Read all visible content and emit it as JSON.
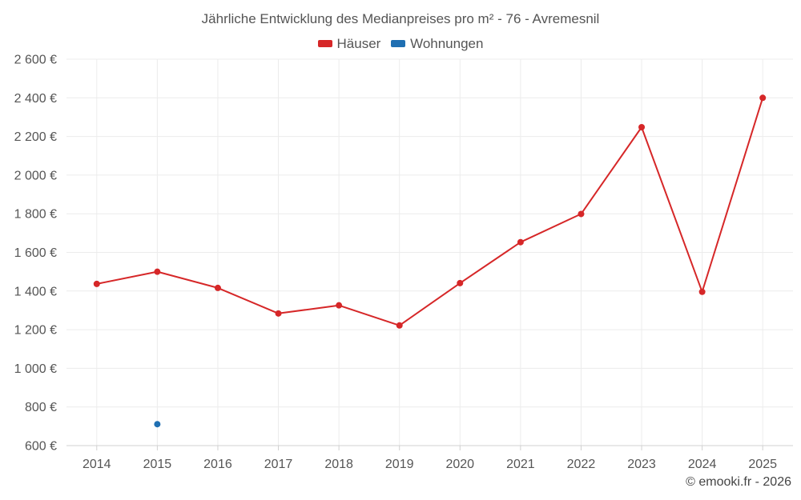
{
  "chart_data": {
    "type": "line",
    "title": "Jährliche Entwicklung des Medianpreises pro m² - 76 - Avremesnil",
    "categories": [
      "2014",
      "2015",
      "2016",
      "2017",
      "2018",
      "2019",
      "2020",
      "2021",
      "2022",
      "2023",
      "2024",
      "2025"
    ],
    "series": [
      {
        "name": "Häuser",
        "color": "#d62728",
        "values": [
          1437,
          1500,
          1416,
          1284,
          1326,
          1222,
          1441,
          1653,
          1799,
          2248,
          1396,
          2400
        ]
      },
      {
        "name": "Wohnungen",
        "color": "#1f6fb2",
        "values": [
          null,
          711,
          null,
          null,
          null,
          null,
          null,
          null,
          null,
          null,
          null,
          null
        ]
      }
    ],
    "y_ticks": [
      600,
      800,
      1000,
      1200,
      1400,
      1600,
      1800,
      2000,
      2200,
      2400,
      2600
    ],
    "y_tick_labels": [
      "600 €",
      "800 €",
      "1 000 €",
      "1 200 €",
      "1 400 €",
      "1 600 €",
      "1 800 €",
      "2 000 €",
      "2 200 €",
      "2 400 €",
      "2 600 €"
    ],
    "ylim": [
      600,
      2600
    ],
    "xlabel": "",
    "ylabel": "",
    "grid": true,
    "legend_position": "top-center"
  },
  "credit": "© emooki.fr - 2026"
}
